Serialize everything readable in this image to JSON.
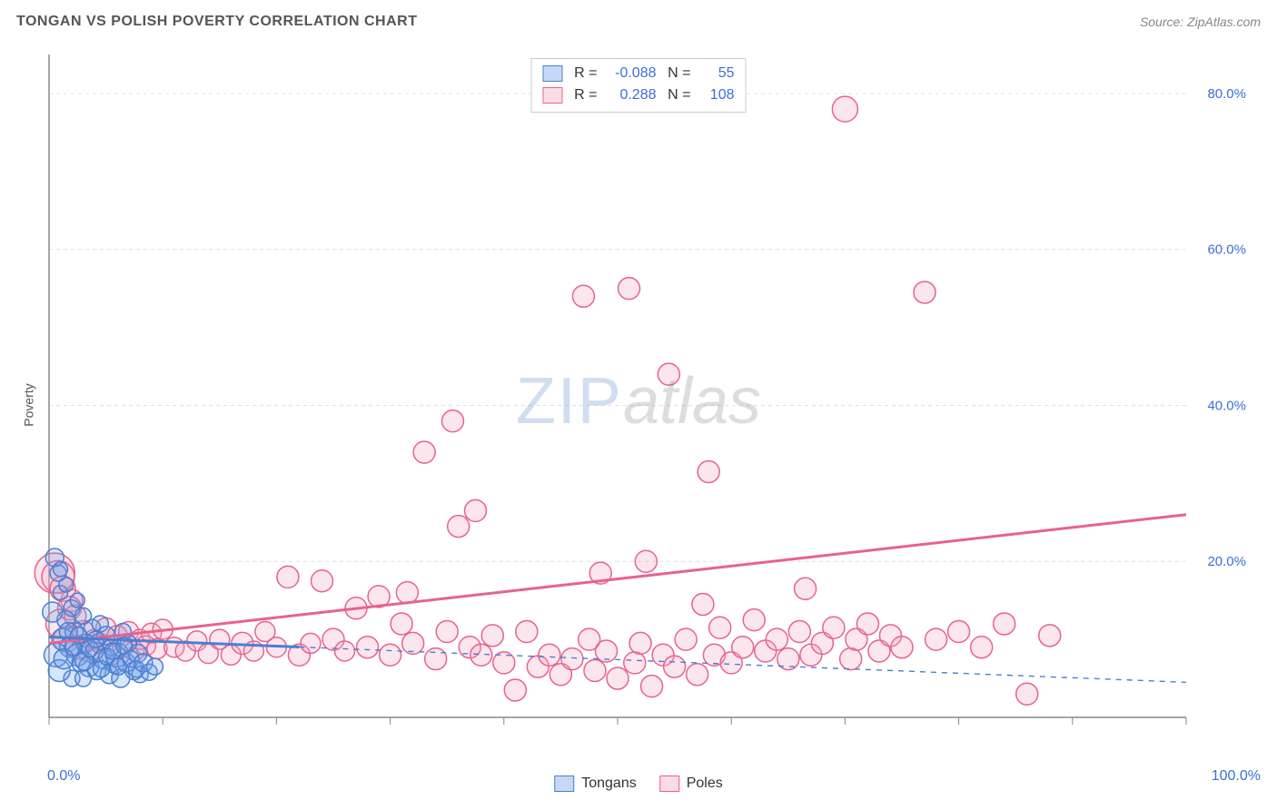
{
  "header": {
    "title": "TONGAN VS POLISH POVERTY CORRELATION CHART",
    "source": "Source: ZipAtlas.com"
  },
  "watermark": {
    "a": "ZIP",
    "b": "atlas"
  },
  "y_axis_label": "Poverty",
  "chart": {
    "type": "scatter",
    "xlim": [
      0,
      100
    ],
    "ylim": [
      0,
      85
    ],
    "x_ticks": [
      0,
      10,
      20,
      30,
      40,
      50,
      60,
      70,
      80,
      90,
      100
    ],
    "x_labels_shown": {
      "0": "0.0%",
      "100": "100.0%"
    },
    "y_ticks": [
      20,
      40,
      60,
      80
    ],
    "y_tick_labels": [
      "20.0%",
      "40.0%",
      "60.0%",
      "80.0%"
    ],
    "background_color": "#ffffff",
    "grid_color": "#e0e0e0",
    "axis_color": "#888888",
    "label_color": "#3b6fd6"
  },
  "series": {
    "tongans": {
      "label": "Tongans",
      "color_fill": "#6fa1e8",
      "color_stroke": "#4a7fd1",
      "r_base": 10,
      "R": "-0.088",
      "N": "55",
      "trend": {
        "y_at_x0": 10.3,
        "y_at_x100": 4.5
      },
      "trend_solid_xmax": 22,
      "points": [
        [
          0.5,
          20.5,
          10
        ],
        [
          0.8,
          18.5,
          9
        ],
        [
          1.0,
          19.0,
          8
        ],
        [
          1.2,
          10.0,
          12
        ],
        [
          1.5,
          12.5,
          10
        ],
        [
          1.8,
          9.0,
          11
        ],
        [
          2.0,
          14.0,
          9
        ],
        [
          2.2,
          11.0,
          10
        ],
        [
          2.5,
          8.0,
          12
        ],
        [
          2.8,
          7.0,
          10
        ],
        [
          3.0,
          13.0,
          9
        ],
        [
          3.2,
          9.5,
          10
        ],
        [
          3.5,
          6.5,
          11
        ],
        [
          3.8,
          11.5,
          9
        ],
        [
          4.0,
          8.5,
          10
        ],
        [
          4.2,
          6.0,
          10
        ],
        [
          4.5,
          12.0,
          9
        ],
        [
          4.8,
          7.5,
          11
        ],
        [
          5.0,
          10.5,
          10
        ],
        [
          5.3,
          5.5,
          10
        ],
        [
          5.5,
          9.0,
          9
        ],
        [
          5.8,
          6.8,
          10
        ],
        [
          6.0,
          8.0,
          13
        ],
        [
          6.3,
          5.0,
          10
        ],
        [
          6.5,
          11.0,
          9
        ],
        [
          6.8,
          7.0,
          10
        ],
        [
          7.0,
          9.5,
          9
        ],
        [
          7.5,
          6.0,
          10
        ],
        [
          7.8,
          8.2,
          10
        ],
        [
          8.0,
          5.5,
          9
        ],
        [
          1.0,
          16.0,
          8
        ],
        [
          1.5,
          17.0,
          8
        ],
        [
          2.0,
          5.0,
          9
        ],
        [
          2.5,
          15.0,
          8
        ],
        [
          3.0,
          5.0,
          9
        ],
        [
          0.3,
          13.5,
          11
        ],
        [
          0.6,
          8.0,
          13
        ],
        [
          0.9,
          6.0,
          12
        ],
        [
          1.3,
          7.5,
          11
        ],
        [
          1.7,
          11.0,
          10
        ],
        [
          2.1,
          9.0,
          9
        ],
        [
          2.6,
          10.5,
          9
        ],
        [
          3.1,
          7.2,
          10
        ],
        [
          3.6,
          8.8,
          9
        ],
        [
          4.1,
          10.0,
          9
        ],
        [
          4.6,
          6.2,
          9
        ],
        [
          5.1,
          7.8,
          9
        ],
        [
          5.6,
          8.5,
          9
        ],
        [
          6.1,
          6.5,
          9
        ],
        [
          6.6,
          9.2,
          9
        ],
        [
          7.2,
          7.5,
          9
        ],
        [
          7.7,
          6.2,
          9
        ],
        [
          8.3,
          7.0,
          10
        ],
        [
          8.8,
          5.8,
          9
        ],
        [
          9.3,
          6.5,
          9
        ]
      ]
    },
    "poles": {
      "label": "Poles",
      "color_fill": "#f4a6be",
      "color_stroke": "#e8628f",
      "r_base": 12,
      "R": "0.288",
      "N": "108",
      "trend": {
        "y_at_x0": 9.5,
        "y_at_x100": 26.0
      },
      "trend_solid_xmax": 100,
      "points": [
        [
          0.5,
          18.5,
          22
        ],
        [
          1.0,
          12.0,
          16
        ],
        [
          1.5,
          10.0,
          14
        ],
        [
          2.0,
          15.0,
          12
        ],
        [
          2.5,
          9.0,
          13
        ],
        [
          3.0,
          11.0,
          12
        ],
        [
          3.5,
          8.5,
          12
        ],
        [
          4.0,
          10.0,
          11
        ],
        [
          4.5,
          9.5,
          11
        ],
        [
          5.0,
          11.5,
          11
        ],
        [
          5.5,
          8.0,
          11
        ],
        [
          6.0,
          10.5,
          11
        ],
        [
          6.5,
          9.0,
          11
        ],
        [
          7.0,
          11.0,
          11
        ],
        [
          7.5,
          8.5,
          11
        ],
        [
          8.0,
          10.0,
          11
        ],
        [
          8.5,
          9.2,
          11
        ],
        [
          9.0,
          10.8,
          11
        ],
        [
          9.5,
          8.8,
          11
        ],
        [
          10.0,
          11.3,
          11
        ],
        [
          11.0,
          9.0,
          11
        ],
        [
          12.0,
          8.5,
          11
        ],
        [
          13.0,
          9.8,
          11
        ],
        [
          14.0,
          8.2,
          11
        ],
        [
          15.0,
          10.0,
          11
        ],
        [
          16.0,
          8.0,
          11
        ],
        [
          17.0,
          9.5,
          12
        ],
        [
          18.0,
          8.5,
          11
        ],
        [
          19.0,
          11.0,
          11
        ],
        [
          20.0,
          9.0,
          11
        ],
        [
          21.0,
          18.0,
          12
        ],
        [
          22.0,
          8.0,
          12
        ],
        [
          23.0,
          9.5,
          11
        ],
        [
          24.0,
          17.5,
          12
        ],
        [
          25.0,
          10.0,
          12
        ],
        [
          26.0,
          8.5,
          11
        ],
        [
          27.0,
          14.0,
          12
        ],
        [
          28.0,
          9.0,
          12
        ],
        [
          29.0,
          15.5,
          12
        ],
        [
          30.0,
          8.0,
          12
        ],
        [
          31.0,
          12.0,
          12
        ],
        [
          31.5,
          16.0,
          12
        ],
        [
          32.0,
          9.5,
          12
        ],
        [
          33.0,
          34.0,
          12
        ],
        [
          34.0,
          7.5,
          12
        ],
        [
          35.0,
          11.0,
          12
        ],
        [
          35.5,
          38.0,
          12
        ],
        [
          36.0,
          24.5,
          12
        ],
        [
          37.0,
          9.0,
          12
        ],
        [
          37.5,
          26.5,
          12
        ],
        [
          38.0,
          8.0,
          12
        ],
        [
          39.0,
          10.5,
          12
        ],
        [
          40.0,
          7.0,
          12
        ],
        [
          41.0,
          3.5,
          12
        ],
        [
          42.0,
          11.0,
          12
        ],
        [
          43.0,
          6.5,
          12
        ],
        [
          44.0,
          8.0,
          12
        ],
        [
          45.0,
          5.5,
          12
        ],
        [
          46.0,
          7.5,
          12
        ],
        [
          47.0,
          54.0,
          12
        ],
        [
          47.5,
          10.0,
          12
        ],
        [
          48.0,
          6.0,
          12
        ],
        [
          48.5,
          18.5,
          12
        ],
        [
          49.0,
          8.5,
          12
        ],
        [
          50.0,
          5.0,
          12
        ],
        [
          51.0,
          55.0,
          12
        ],
        [
          51.5,
          7.0,
          12
        ],
        [
          52.0,
          9.5,
          12
        ],
        [
          52.5,
          20.0,
          12
        ],
        [
          53.0,
          4.0,
          12
        ],
        [
          54.0,
          8.0,
          12
        ],
        [
          54.5,
          44.0,
          12
        ],
        [
          55.0,
          6.5,
          12
        ],
        [
          56.0,
          10.0,
          12
        ],
        [
          57.0,
          5.5,
          12
        ],
        [
          57.5,
          14.5,
          12
        ],
        [
          58.0,
          31.5,
          12
        ],
        [
          58.5,
          8.0,
          12
        ],
        [
          59.0,
          11.5,
          12
        ],
        [
          60.0,
          7.0,
          12
        ],
        [
          61.0,
          9.0,
          12
        ],
        [
          62.0,
          12.5,
          12
        ],
        [
          63.0,
          8.5,
          12
        ],
        [
          64.0,
          10.0,
          12
        ],
        [
          65.0,
          7.5,
          12
        ],
        [
          66.0,
          11.0,
          12
        ],
        [
          66.5,
          16.5,
          12
        ],
        [
          67.0,
          8.0,
          12
        ],
        [
          68.0,
          9.5,
          12
        ],
        [
          69.0,
          11.5,
          12
        ],
        [
          70.0,
          78.0,
          14
        ],
        [
          70.5,
          7.5,
          12
        ],
        [
          71.0,
          10.0,
          12
        ],
        [
          72.0,
          12.0,
          12
        ],
        [
          73.0,
          8.5,
          12
        ],
        [
          74.0,
          10.5,
          12
        ],
        [
          75.0,
          9.0,
          12
        ],
        [
          77.0,
          54.5,
          12
        ],
        [
          78.0,
          10.0,
          12
        ],
        [
          80.0,
          11.0,
          12
        ],
        [
          82.0,
          9.0,
          12
        ],
        [
          84.0,
          12.0,
          12
        ],
        [
          86.0,
          3.0,
          12
        ],
        [
          88.0,
          10.5,
          12
        ],
        [
          0.8,
          18.0,
          18
        ],
        [
          1.2,
          16.5,
          14
        ],
        [
          1.8,
          14.0,
          13
        ],
        [
          2.3,
          13.0,
          12
        ]
      ]
    }
  },
  "legend_top": {
    "r_label": "R =",
    "n_label": "N ="
  }
}
